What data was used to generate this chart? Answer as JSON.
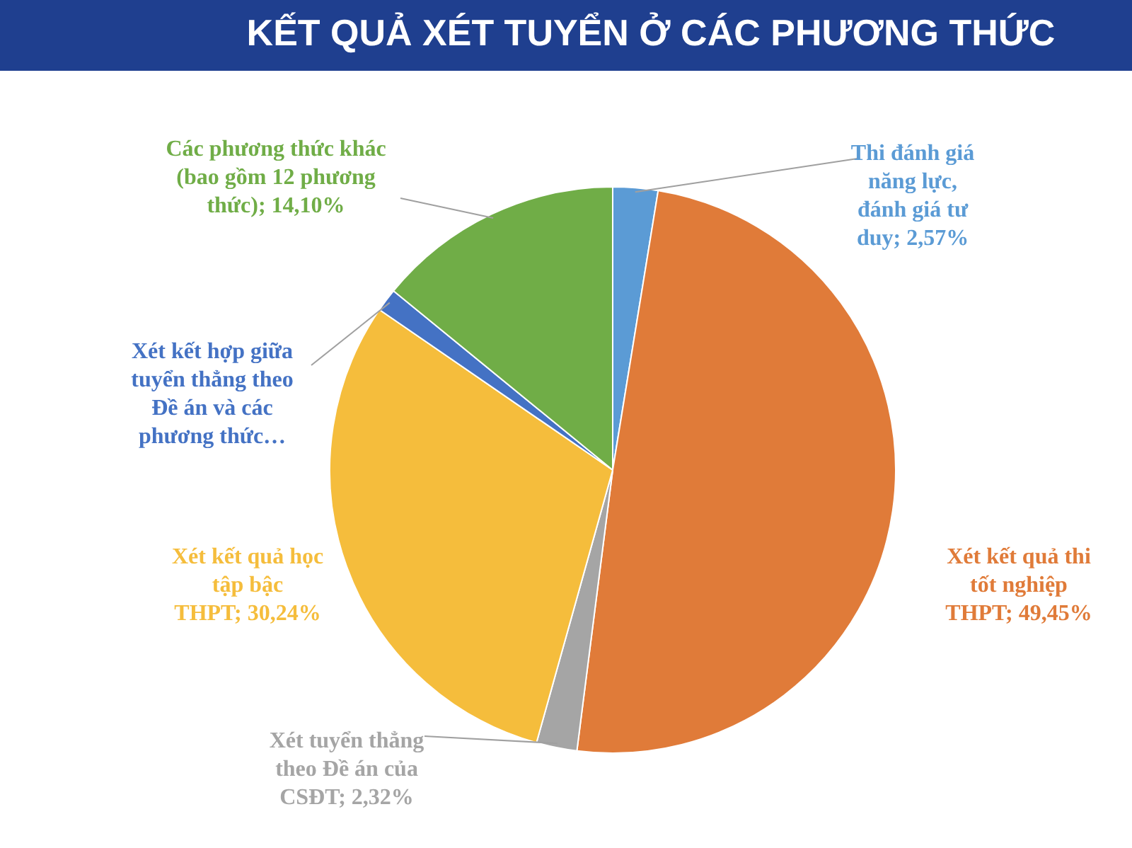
{
  "chart_data": {
    "type": "pie",
    "title": "KẾT QUẢ XÉT TUYỂN Ở CÁC PHƯƠNG THỨC",
    "categories": [
      "Thi đánh giá năng lực, đánh giá tư duy",
      "Xét kết quả thi tốt nghiệp THPT",
      "Xét tuyển thẳng theo Đề án của CSĐT",
      "Xét kết quả học tập bậc THPT",
      "Xét kết hợp giữa tuyển thẳng theo Đề án và các phương thức…",
      "Các phương thức khác (bao gồm 12 phương thức)"
    ],
    "values": [
      2.57,
      49.45,
      2.32,
      30.24,
      1.32,
      14.1
    ],
    "value_labels": [
      "2,57%",
      "49,45%",
      "2,32%",
      "30,24%",
      null,
      "14,10%"
    ],
    "colors": [
      "#5b9bd5",
      "#e07b39",
      "#a5a5a5",
      "#f5bd3c",
      "#4472c4",
      "#70ad47"
    ],
    "legend": false
  }
}
